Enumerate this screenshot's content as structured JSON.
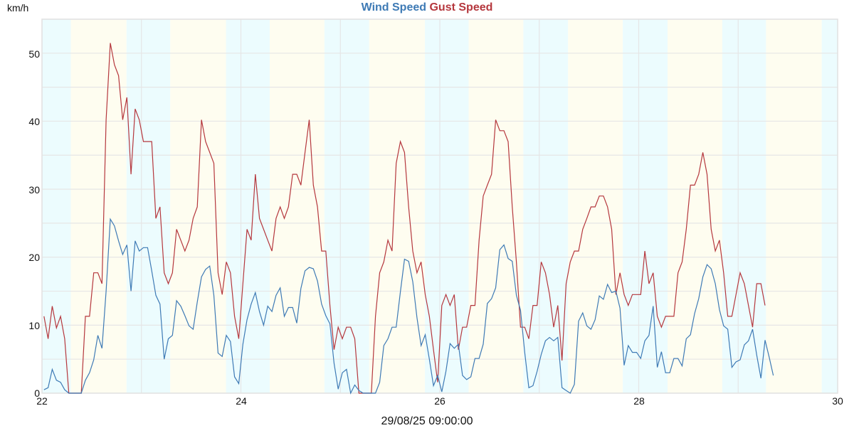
{
  "header": {
    "unit_label": "km/h",
    "legend": [
      {
        "label": "Wind Speed",
        "color": "#3e7ab5"
      },
      {
        "label": "Gust Speed",
        "color": "#b5373d"
      }
    ]
  },
  "footer": {
    "x_title": "29/08/25 09:00:00"
  },
  "colors": {
    "night_band": "#ecfcfe",
    "day_band": "#fefdf0",
    "grid": "#e6e6e6",
    "wind": "#3e7ab5",
    "gust": "#b5373d"
  },
  "chart_data": {
    "type": "line",
    "title": "Wind Speed Gust Speed",
    "xlabel": "29/08/25 09:00:00",
    "ylabel": "km/h",
    "xlim": [
      22,
      30
    ],
    "ylim": [
      0,
      55
    ],
    "x_ticks": [
      "22",
      "24",
      "26",
      "28",
      "30"
    ],
    "y_ticks": [
      "0",
      "10",
      "20",
      "30",
      "40",
      "50"
    ],
    "grid": true,
    "legend_position": "top-center",
    "x_start_day": 22.02,
    "x_step_hours": 1,
    "series": [
      {
        "name": "Wind Speed",
        "color": "#3e7ab5",
        "values": [
          0.5,
          0.8,
          3.5,
          1.9,
          1.6,
          0.5,
          0,
          0,
          0,
          0,
          1.9,
          3.0,
          4.9,
          8.5,
          6.6,
          15,
          25.6,
          24.6,
          22.4,
          20.4,
          21.8,
          15,
          22.4,
          20.9,
          21.4,
          21.4,
          18,
          14.4,
          13.1,
          5,
          8,
          8.5,
          13.6,
          12.8,
          11.4,
          9.9,
          9.4,
          13.4,
          17.1,
          18.2,
          18.7,
          14.4,
          5.9,
          5.4,
          8.5,
          7.6,
          2.4,
          1.4,
          7.2,
          10.8,
          13.1,
          14.8,
          12,
          10,
          12.8,
          12,
          14.4,
          15.5,
          11.3,
          12.6,
          12.6,
          10.3,
          15.4,
          18,
          18.5,
          18.3,
          16.5,
          13.1,
          11.4,
          10.2,
          4.4,
          0.6,
          3,
          3.5,
          0,
          1.2,
          0.4,
          0,
          0,
          0,
          0,
          1.6,
          7,
          8,
          9.7,
          9.7,
          14.9,
          19.7,
          19.4,
          16.4,
          11.1,
          7,
          8.6,
          5,
          1.1,
          2.6,
          0.2,
          3.2,
          7.3,
          6.6,
          7.2,
          2.6,
          2.0,
          2.4,
          5.1,
          5.1,
          7.2,
          13.2,
          13.9,
          15.5,
          21.1,
          21.8,
          19.8,
          19.4,
          14.4,
          12.2,
          6,
          0.8,
          1.1,
          3.2,
          5.7,
          7.7,
          8.2,
          7.7,
          8.2,
          0.8,
          0.4,
          0,
          1.3,
          10.6,
          11.8,
          9.9,
          9.4,
          10.8,
          14.3,
          13.8,
          16,
          14.8,
          15,
          12.5,
          4.1,
          7,
          6,
          6,
          5.1,
          7.7,
          8.5,
          12.8,
          3.8,
          6.1,
          3,
          3,
          5.1,
          5.1,
          4,
          8,
          8.6,
          11.7,
          13.9,
          17.1,
          18.9,
          18.3,
          16.1,
          12.3,
          9.9,
          9.4,
          3.8,
          4.6,
          4.9,
          7.1,
          7.7,
          9.4,
          5.6,
          2.2,
          7.8,
          5.3,
          2.6
        ],
        "_note": "approximate hourly readings"
      },
      {
        "name": "Gust Speed",
        "color": "#b5373d",
        "values": [
          11.3,
          8,
          12.8,
          9.6,
          11.3,
          8,
          0,
          0,
          0,
          0,
          11.3,
          11.3,
          17.7,
          17.7,
          16.1,
          40.2,
          51.5,
          48.3,
          46.7,
          40.2,
          43.5,
          32.2,
          41.8,
          40.2,
          37,
          37,
          37,
          25.7,
          27.4,
          17.7,
          16.1,
          17.7,
          24.1,
          22.5,
          20.9,
          22.5,
          25.7,
          27.4,
          40.2,
          37,
          35.4,
          33.8,
          17.7,
          14.5,
          19.3,
          17.7,
          11.3,
          8,
          16.1,
          24.1,
          22.5,
          32.2,
          25.7,
          24.1,
          22.5,
          20.9,
          25.7,
          27.4,
          25.7,
          27.4,
          32.2,
          32.2,
          30.6,
          35.4,
          40.2,
          30.6,
          27.4,
          20.9,
          20.9,
          12.9,
          6.4,
          9.7,
          8,
          9.7,
          9.7,
          8,
          0,
          0,
          0,
          0,
          11.3,
          17.7,
          19.3,
          22.5,
          20.9,
          33.8,
          37,
          35.4,
          27.4,
          20.9,
          17.7,
          19.3,
          14.5,
          11.3,
          6.4,
          1.6,
          12.9,
          14.5,
          12.9,
          14.5,
          6.4,
          9.7,
          9.7,
          12.9,
          12.9,
          22.5,
          29,
          30.6,
          32.2,
          40.2,
          38.6,
          38.6,
          37,
          27.4,
          19.3,
          9.7,
          9.7,
          8,
          12.9,
          12.9,
          19.3,
          17.7,
          14.5,
          9.7,
          12.9,
          4.8,
          16.1,
          19.3,
          20.9,
          20.9,
          24.1,
          25.7,
          27.4,
          27.4,
          29,
          29,
          27.4,
          24.1,
          14.5,
          17.7,
          14.5,
          12.9,
          14.5,
          14.5,
          14.5,
          20.9,
          16.1,
          17.7,
          11.3,
          9.7,
          11.3,
          11.3,
          11.3,
          17.7,
          19.3,
          24.1,
          30.6,
          30.6,
          32.2,
          35.4,
          32.2,
          24.1,
          20.9,
          22.5,
          17.7,
          11.3,
          11.3,
          14.5,
          17.7,
          16.1,
          12.9,
          9.7,
          16.1,
          16.1,
          12.9
        ],
        "_note": "approximate hourly readings"
      }
    ],
    "bands": [
      {
        "type": "night",
        "from": 22.0,
        "to": 22.29
      },
      {
        "type": "day",
        "from": 22.29,
        "to": 22.85
      },
      {
        "type": "night",
        "from": 22.85,
        "to": 23.29
      },
      {
        "type": "day",
        "from": 23.29,
        "to": 23.85
      },
      {
        "type": "night",
        "from": 23.85,
        "to": 24.29
      },
      {
        "type": "day",
        "from": 24.29,
        "to": 24.84
      },
      {
        "type": "night",
        "from": 24.84,
        "to": 25.29
      },
      {
        "type": "day",
        "from": 25.29,
        "to": 25.85
      },
      {
        "type": "night",
        "from": 25.85,
        "to": 26.29
      },
      {
        "type": "day",
        "from": 26.29,
        "to": 26.84
      },
      {
        "type": "night",
        "from": 26.84,
        "to": 27.29
      },
      {
        "type": "day",
        "from": 27.29,
        "to": 27.84
      },
      {
        "type": "night",
        "from": 27.84,
        "to": 28.29
      },
      {
        "type": "day",
        "from": 28.29,
        "to": 28.84
      },
      {
        "type": "night",
        "from": 28.84,
        "to": 29.28
      },
      {
        "type": "day",
        "from": 29.28,
        "to": 29.84
      },
      {
        "type": "night",
        "from": 29.84,
        "to": 30.0
      }
    ]
  }
}
